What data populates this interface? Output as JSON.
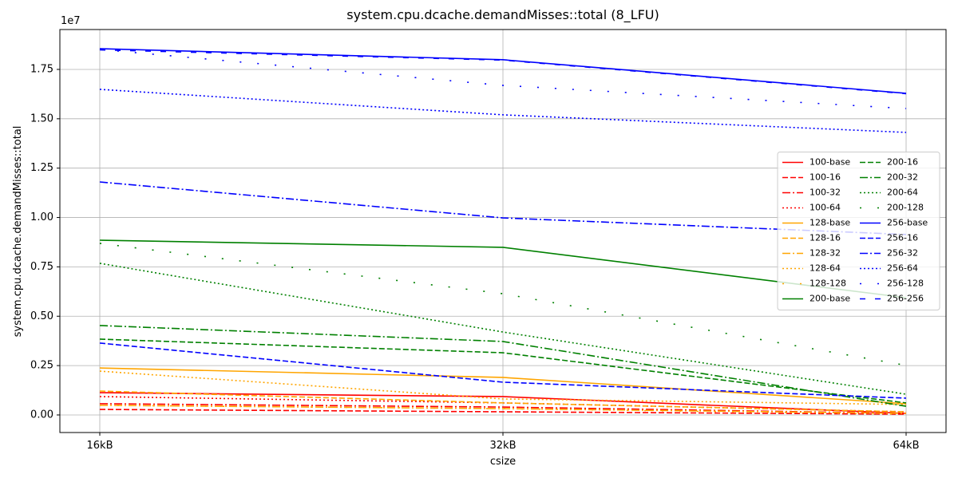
{
  "chart_data": {
    "type": "line",
    "title": "system.cpu.dcache.demandMisses::total (8_LFU)",
    "x_label": "csize",
    "y_label": "system.cpu.dcache.demandMisses::total",
    "y_offset_label": "1e7",
    "categories": [
      "16kB",
      "32kB",
      "64kB"
    ],
    "ylim": [
      -0.089,
      1.952
    ],
    "yticks": [
      {
        "value": 0,
        "label": "0.00"
      },
      0.25,
      {
        "value": 0.5,
        "label": "0.50"
      },
      0.75,
      {
        "value": 1,
        "label": "1.00"
      },
      1.25,
      {
        "value": 1.5,
        "label": "1.50"
      },
      1.75
    ],
    "grid": true,
    "legend_position": "center right",
    "legend_columns": 2,
    "series": [
      {
        "name": "100-base",
        "color": "red",
        "linestyle": "solid",
        "values": [
          0.113,
          0.093,
          0.008
        ]
      },
      {
        "name": "100-16",
        "color": "red",
        "linestyle": "dashed",
        "values": [
          0.028,
          0.016,
          0.004
        ]
      },
      {
        "name": "100-32",
        "color": "red",
        "linestyle": "dashdot",
        "values": [
          0.057,
          0.04,
          0.008
        ]
      },
      {
        "name": "100-64",
        "color": "red",
        "linestyle": "dotted",
        "values": [
          0.093,
          0.061,
          0.016
        ]
      },
      {
        "name": "128-base",
        "color": "orange",
        "linestyle": "solid",
        "values": [
          0.238,
          0.19,
          0.057
        ]
      },
      {
        "name": "128-16",
        "color": "orange",
        "linestyle": "dashed",
        "values": [
          0.121,
          0.061,
          0.016
        ]
      },
      {
        "name": "128-32",
        "color": "orange",
        "linestyle": "dashdot",
        "values": [
          0.049,
          0.032,
          0.008
        ]
      },
      {
        "name": "128-64",
        "color": "orange",
        "linestyle": "dotted",
        "values": [
          0.222,
          0.081,
          0.053
        ]
      },
      {
        "name": "128-128",
        "color": "orange",
        "linestyle": "loosely dotted",
        "values": [
          0.049,
          0.032,
          0.004
        ]
      },
      {
        "name": "200-base",
        "color": "green",
        "linestyle": "solid",
        "values": [
          0.885,
          0.849,
          0.594
        ]
      },
      {
        "name": "200-16",
        "color": "green",
        "linestyle": "dashed",
        "values": [
          0.384,
          0.315,
          0.061
        ]
      },
      {
        "name": "200-32",
        "color": "green",
        "linestyle": "dashdot",
        "values": [
          0.453,
          0.372,
          0.044
        ]
      },
      {
        "name": "200-64",
        "color": "green",
        "linestyle": "dotted",
        "values": [
          0.768,
          0.42,
          0.105
        ]
      },
      {
        "name": "200-128",
        "color": "green",
        "linestyle": "loosely dotted",
        "values": [
          0.869,
          0.614,
          0.251
        ]
      },
      {
        "name": "256-base",
        "color": "blue",
        "linestyle": "solid",
        "values": [
          1.855,
          1.799,
          1.629
        ]
      },
      {
        "name": "256-16",
        "color": "blue",
        "linestyle": "dashed",
        "values": [
          0.364,
          0.166,
          0.085
        ]
      },
      {
        "name": "256-32",
        "color": "blue",
        "linestyle": "dashdot",
        "values": [
          1.18,
          0.998,
          0.914
        ]
      },
      {
        "name": "256-64",
        "color": "blue",
        "linestyle": "dotted",
        "values": [
          1.649,
          1.52,
          1.431
        ]
      },
      {
        "name": "256-128",
        "color": "blue",
        "linestyle": "loosely dotted",
        "values": [
          1.851,
          1.669,
          1.552
        ]
      },
      {
        "name": "256-256",
        "color": "blue",
        "linestyle": "loosely dashed",
        "values": [
          1.849,
          1.797,
          1.627
        ]
      }
    ]
  }
}
